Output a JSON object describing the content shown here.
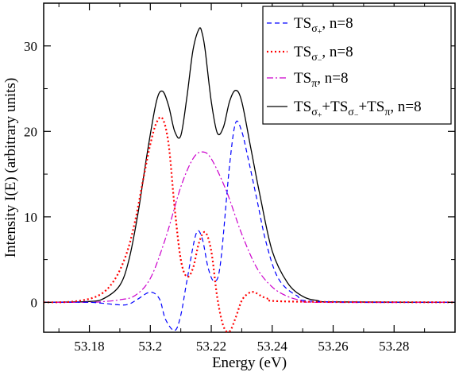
{
  "chart_data": {
    "type": "line",
    "xlabel": "Energy (eV)",
    "ylabel": "Intensity I(E) (arbitrary units)",
    "xlim": [
      53.165,
      53.3
    ],
    "ylim": [
      -3.5,
      35
    ],
    "x_ticks": [
      "53.18",
      "53.2",
      "53.22",
      "53.24",
      "53.26",
      "53.28"
    ],
    "x_tick_values": [
      53.18,
      53.2,
      53.22,
      53.24,
      53.26,
      53.28
    ],
    "y_ticks": [
      "0",
      "10",
      "20",
      "30"
    ],
    "y_tick_values": [
      0,
      10,
      20,
      30
    ],
    "legend_position": "top-right",
    "grid": false,
    "series": [
      {
        "name": "TSσ+, n=8",
        "legend": {
          "base": "TS",
          "sub": "σ",
          "subsub": "+",
          "rest": ", n=8"
        },
        "color": "#0000ff",
        "dash": "dashed",
        "x": [
          53.165,
          53.18,
          53.19,
          53.193,
          53.196,
          53.2,
          53.203,
          53.205,
          53.208,
          53.21,
          53.212,
          53.215,
          53.217,
          53.219,
          53.221,
          53.223,
          53.226,
          53.228,
          53.23,
          53.232,
          53.235,
          53.238,
          53.242,
          53.248,
          53.255,
          53.3
        ],
        "y": [
          0,
          0,
          -0.3,
          -0.2,
          0.4,
          1.2,
          0.4,
          -2.0,
          -3.3,
          -1.5,
          2.5,
          8.0,
          7.5,
          4.0,
          2.5,
          4.5,
          16.0,
          21.0,
          20.0,
          17.0,
          12.0,
          7.0,
          2.8,
          0.8,
          0.1,
          0
        ]
      },
      {
        "name": "TSσ-, n=8",
        "legend": {
          "base": "TS",
          "sub": "σ",
          "subsub": "−",
          "rest": ", n=8"
        },
        "color": "#ff0000",
        "dash": "dotted",
        "x": [
          53.165,
          53.175,
          53.183,
          53.188,
          53.192,
          53.195,
          53.198,
          53.2,
          53.202,
          53.204,
          53.206,
          53.208,
          53.21,
          53.212,
          53.214,
          53.216,
          53.218,
          53.22,
          53.222,
          53.224,
          53.226,
          53.228,
          53.23,
          53.232,
          53.234,
          53.238,
          53.245,
          53.3
        ],
        "y": [
          0,
          0.1,
          0.8,
          2.5,
          5.5,
          9.5,
          15.0,
          18.5,
          21.0,
          21.5,
          18.5,
          11.0,
          5.0,
          3.0,
          4.0,
          7.0,
          8.2,
          6.0,
          0.5,
          -2.8,
          -3.4,
          -1.8,
          0.2,
          1.0,
          1.2,
          0.5,
          0.1,
          0
        ]
      },
      {
        "name": "TSπ, n=8",
        "legend": {
          "base": "TS",
          "sub": "π",
          "subsub": "",
          "rest": ", n=8"
        },
        "color": "#cc00cc",
        "dash": "dashdot",
        "x": [
          53.165,
          53.18,
          53.185,
          53.19,
          53.195,
          53.2,
          53.205,
          53.21,
          53.214,
          53.217,
          53.22,
          53.225,
          53.23,
          53.235,
          53.24,
          53.245,
          53.25,
          53.255,
          53.3
        ],
        "y": [
          0,
          0,
          0.1,
          0.3,
          0.8,
          2.8,
          7.5,
          13.5,
          16.8,
          17.6,
          16.8,
          13.0,
          8.0,
          4.0,
          1.8,
          0.7,
          0.2,
          0.0,
          0
        ]
      },
      {
        "name": "TSσ++TSσ-+TSπ, n=8",
        "legend": {
          "base": "TS",
          "sub": "σ",
          "subsub": "+",
          "rest": "",
          "combined": true
        },
        "color": "#000000",
        "dash": "solid",
        "x": [
          53.165,
          53.18,
          53.185,
          53.19,
          53.193,
          53.196,
          53.199,
          53.202,
          53.204,
          53.206,
          53.208,
          53.21,
          53.212,
          53.214,
          53.216,
          53.217,
          53.218,
          53.22,
          53.222,
          53.224,
          53.226,
          53.228,
          53.23,
          53.233,
          53.236,
          53.24,
          53.245,
          53.25,
          53.255,
          53.26,
          53.3
        ],
        "y": [
          0,
          0.1,
          0.5,
          2.0,
          5.0,
          10.5,
          17.5,
          23.5,
          24.7,
          23.0,
          20.0,
          19.5,
          24.0,
          29.5,
          32.0,
          31.5,
          29.5,
          23.5,
          19.8,
          20.5,
          23.5,
          24.8,
          23.5,
          18.0,
          12.5,
          6.0,
          2.3,
          0.7,
          0.2,
          0.05,
          0
        ]
      }
    ],
    "legend_combined_label": "TSσ++TSσ−+TSπ, n=8",
    "legend_combined_parts": [
      "TS",
      "σ",
      "+",
      "+TS",
      "σ",
      "−",
      "+TS",
      "π",
      ", n=8"
    ]
  }
}
